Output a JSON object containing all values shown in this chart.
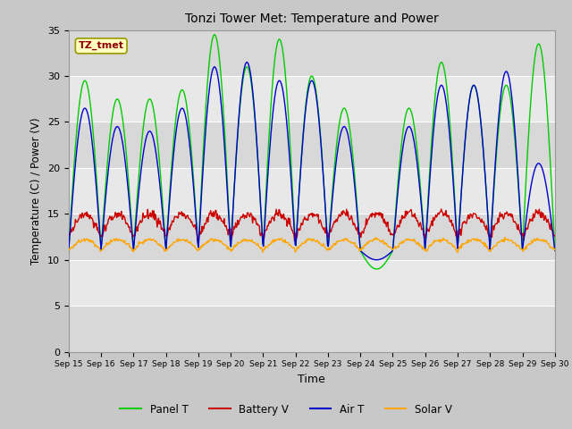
{
  "title": "Tonzi Tower Met: Temperature and Power",
  "xlabel": "Time",
  "ylabel": "Temperature (C) / Power (V)",
  "ylim": [
    0,
    35
  ],
  "yticks": [
    0,
    5,
    10,
    15,
    20,
    25,
    30,
    35
  ],
  "xtick_labels": [
    "Sep 15",
    "Sep 16",
    "Sep 17",
    "Sep 18",
    "Sep 19",
    "Sep 20",
    "Sep 21",
    "Sep 22",
    "Sep 23",
    "Sep 24",
    "Sep 25",
    "Sep 26",
    "Sep 27",
    "Sep 28",
    "Sep 29",
    "Sep 30"
  ],
  "panel_color": "#00CC00",
  "battery_color": "#CC0000",
  "air_color": "#0000CC",
  "solar_color": "#FFA500",
  "fig_bg_color": "#C8C8C8",
  "plot_bg_color": "#D8D8D8",
  "band_light": "#EBEBEB",
  "band_dark": "#C8C8C8",
  "annotation_text": "TZ_tmet",
  "annotation_color": "#8B0000",
  "annotation_bg": "#FFFFC0",
  "legend_labels": [
    "Panel T",
    "Battery V",
    "Air T",
    "Solar V"
  ]
}
